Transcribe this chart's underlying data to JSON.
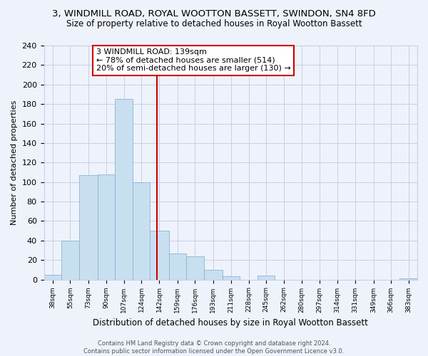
{
  "title": "3, WINDMILL ROAD, ROYAL WOOTTON BASSETT, SWINDON, SN4 8FD",
  "subtitle": "Size of property relative to detached houses in Royal Wootton Bassett",
  "xlabel": "Distribution of detached houses by size in Royal Wootton Bassett",
  "ylabel": "Number of detached properties",
  "footer_line1": "Contains HM Land Registry data © Crown copyright and database right 2024.",
  "footer_line2": "Contains public sector information licensed under the Open Government Licence v3.0.",
  "bin_labels": [
    "38sqm",
    "55sqm",
    "73sqm",
    "90sqm",
    "107sqm",
    "124sqm",
    "142sqm",
    "159sqm",
    "176sqm",
    "193sqm",
    "211sqm",
    "228sqm",
    "245sqm",
    "262sqm",
    "280sqm",
    "297sqm",
    "314sqm",
    "331sqm",
    "349sqm",
    "366sqm",
    "383sqm"
  ],
  "bin_edges": [
    29.5,
    46.5,
    63.5,
    81.5,
    98.5,
    115.5,
    132.5,
    150.5,
    167.5,
    184.5,
    202.5,
    219.5,
    236.5,
    253.5,
    270.5,
    288.5,
    305.5,
    322.5,
    340.5,
    357.5,
    374.5,
    391.5
  ],
  "bar_heights": [
    5,
    40,
    107,
    108,
    185,
    100,
    50,
    27,
    24,
    10,
    3,
    0,
    4,
    0,
    0,
    0,
    0,
    0,
    0,
    0,
    1
  ],
  "bar_color": "#c8dff0",
  "bar_edge_color": "#8ab4d4",
  "vline_x": 139,
  "vline_color": "#cc0000",
  "annotation_text": "3 WINDMILL ROAD: 139sqm\n← 78% of detached houses are smaller (514)\n20% of semi-detached houses are larger (130) →",
  "annotation_box_color": "#ffffff",
  "annotation_box_edge": "#cc0000",
  "ylim": [
    0,
    240
  ],
  "yticks": [
    0,
    20,
    40,
    60,
    80,
    100,
    120,
    140,
    160,
    180,
    200,
    220,
    240
  ],
  "background_color": "#eef2fb",
  "grid_color": "#c8cfe8",
  "title_fontsize": 9.5,
  "subtitle_fontsize": 8.5
}
